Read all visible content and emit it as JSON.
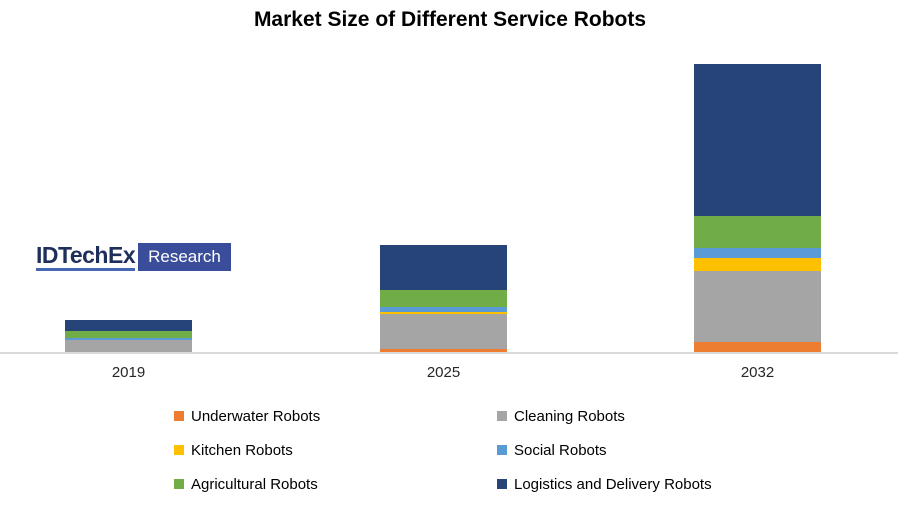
{
  "chart_data": {
    "type": "bar",
    "stacked": true,
    "title": "Market Size of Different Service Robots",
    "categories": [
      "2019",
      "2025",
      "2032"
    ],
    "series": [
      {
        "name": "Underwater Robots",
        "color": "#ED7D31",
        "values": [
          0,
          3,
          10
        ]
      },
      {
        "name": "Cleaning Robots",
        "color": "#A5A5A5",
        "values": [
          12,
          35,
          71
        ]
      },
      {
        "name": "Kitchen Robots",
        "color": "#FFC000",
        "values": [
          0,
          2,
          13
        ]
      },
      {
        "name": "Social Robots",
        "color": "#5B9BD5",
        "values": [
          2.5,
          5,
          10
        ]
      },
      {
        "name": "Agricultural Robots",
        "color": "#70AD47",
        "values": [
          7,
          17.5,
          32
        ]
      },
      {
        "name": "Logistics and Delivery Robots",
        "color": "#264478",
        "values": [
          11,
          45,
          152
        ]
      }
    ],
    "value_note": "relative units estimated from bar heights; no value axis is shown in the chart",
    "xlabel": "",
    "ylabel": "",
    "grid": false,
    "legend_position": "bottom",
    "axis_line_color": "#D9D9D9"
  },
  "logo": {
    "brand": "IDTechEx",
    "label": "Research",
    "brand_color": "#1F2F5C",
    "underline_color": "#4468B1",
    "box_color": "#3A4D9B"
  }
}
